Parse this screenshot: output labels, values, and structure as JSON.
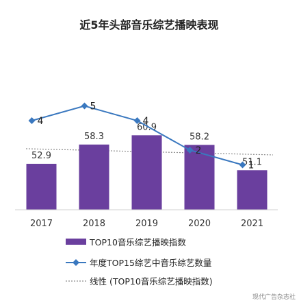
{
  "colors": {
    "bar": "#6a3f9e",
    "line": "#3a78bf",
    "trend": "#8a8a8a"
  },
  "chart_data": {
    "type": "bar",
    "title": "近5年头部音乐综艺播映表现",
    "categories": [
      "2017",
      "2018",
      "2019",
      "2020",
      "2021"
    ],
    "series": [
      {
        "name": "TOP10音乐综艺播映指数",
        "type": "bar",
        "values": [
          52.9,
          58.3,
          60.9,
          58.2,
          51.1
        ]
      },
      {
        "name": "年度TOP15综艺中音乐综艺数量",
        "type": "line",
        "values": [
          4,
          5,
          4,
          2,
          1
        ]
      },
      {
        "name": "线性 (TOP10音乐综艺播映指数)",
        "type": "trendline",
        "of": "TOP10音乐综艺播映指数"
      }
    ],
    "legend_position": "bottom",
    "grid": false
  },
  "watermark": "现代广告杂志社"
}
